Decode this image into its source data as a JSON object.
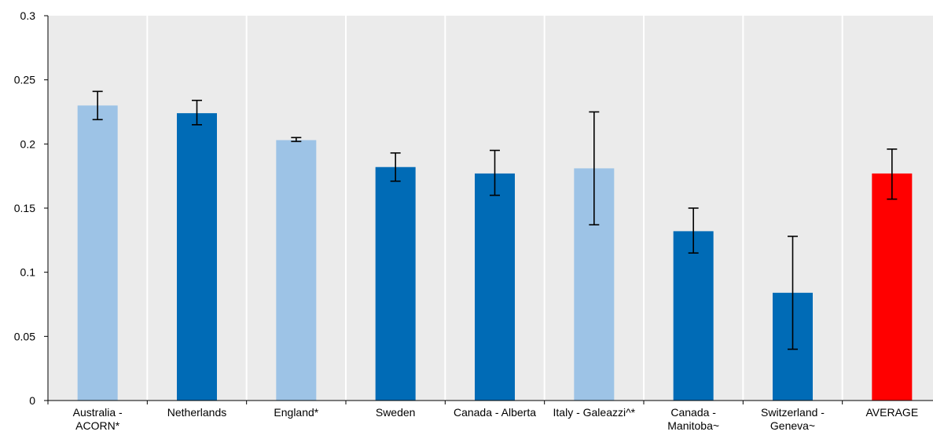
{
  "chart_data": {
    "type": "bar",
    "title": "",
    "xlabel": "",
    "ylabel": "",
    "ylim": [
      0,
      0.3
    ],
    "yticks": [
      {
        "value": 0,
        "label": "0"
      },
      {
        "value": 0.05,
        "label": "0.05"
      },
      {
        "value": 0.1,
        "label": "0.1"
      },
      {
        "value": 0.15,
        "label": "0.15"
      },
      {
        "value": 0.2,
        "label": "0.2"
      },
      {
        "value": 0.25,
        "label": "0.25"
      },
      {
        "value": 0.3,
        "label": "0.3"
      }
    ],
    "grid": "vertical",
    "legend": "none",
    "bars": [
      {
        "label": [
          "Australia -",
          "ACORN*"
        ],
        "value": 0.23,
        "err_low": 0.219,
        "err_high": 0.241,
        "color": "#9dc3e6"
      },
      {
        "label": [
          "Netherlands"
        ],
        "value": 0.224,
        "err_low": 0.215,
        "err_high": 0.234,
        "color": "#006bb6"
      },
      {
        "label": [
          "England*"
        ],
        "value": 0.203,
        "err_low": 0.202,
        "err_high": 0.205,
        "color": "#9dc3e6"
      },
      {
        "label": [
          "Sweden"
        ],
        "value": 0.182,
        "err_low": 0.171,
        "err_high": 0.193,
        "color": "#006bb6"
      },
      {
        "label": [
          "Canada - Alberta"
        ],
        "value": 0.177,
        "err_low": 0.16,
        "err_high": 0.195,
        "color": "#006bb6"
      },
      {
        "label": [
          "Italy - Galeazzi^*"
        ],
        "value": 0.181,
        "err_low": 0.137,
        "err_high": 0.225,
        "color": "#9dc3e6"
      },
      {
        "label": [
          "Canada -",
          "Manitoba~"
        ],
        "value": 0.132,
        "err_low": 0.115,
        "err_high": 0.15,
        "color": "#006bb6"
      },
      {
        "label": [
          "Switzerland -",
          "Geneva~"
        ],
        "value": 0.084,
        "err_low": 0.04,
        "err_high": 0.128,
        "color": "#006bb6"
      },
      {
        "label": [
          "AVERAGE"
        ],
        "value": 0.177,
        "err_low": 0.157,
        "err_high": 0.196,
        "color": "#ff0000"
      }
    ]
  }
}
